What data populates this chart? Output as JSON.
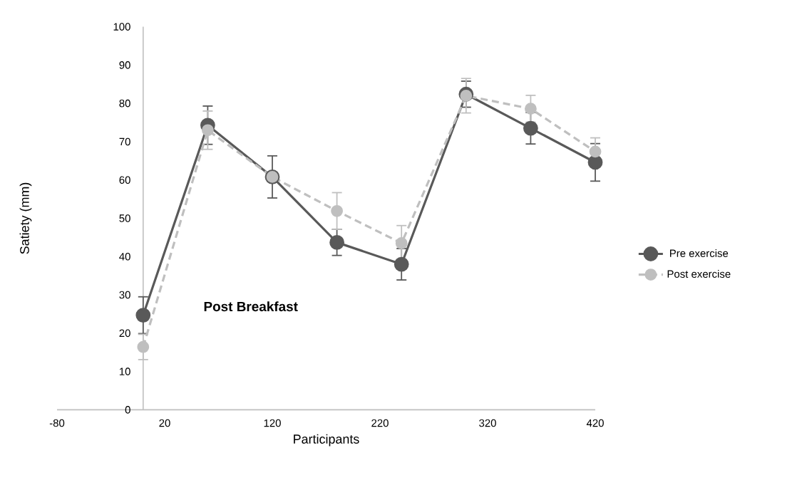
{
  "chart_data": {
    "type": "line",
    "xlabel": "Participants",
    "ylabel": "Satiety (mm)",
    "x": [
      0,
      60,
      120,
      180,
      240,
      300,
      360,
      420
    ],
    "xlim": [
      -80,
      420
    ],
    "xticks": [
      -80,
      20,
      120,
      220,
      320,
      420
    ],
    "ylim": [
      0,
      100
    ],
    "yticks": [
      0,
      10,
      20,
      30,
      40,
      50,
      60,
      70,
      80,
      90,
      100
    ],
    "series": [
      {
        "name": "Pre exercise",
        "color": "#595959",
        "line_style": "solid",
        "marker": "circle",
        "values": [
          24.7,
          74.3,
          60.8,
          43.7,
          38,
          82.4,
          73.5,
          64.6
        ],
        "errors": [
          4.8,
          5,
          5.5,
          3.4,
          4.1,
          3.4,
          4.1,
          4.9
        ]
      },
      {
        "name": "Post exercise",
        "color": "#bfbfbf",
        "line_style": "dashed",
        "marker": "circle",
        "values": [
          16.4,
          73,
          60.8,
          51.9,
          43.5,
          82,
          78.6,
          67.4
        ],
        "errors": [
          3.3,
          5,
          null,
          4.8,
          4.6,
          4.5,
          3.5,
          3.6
        ]
      }
    ],
    "legend": "right",
    "grid": false,
    "annotations": [
      "Post Breakfast"
    ]
  }
}
